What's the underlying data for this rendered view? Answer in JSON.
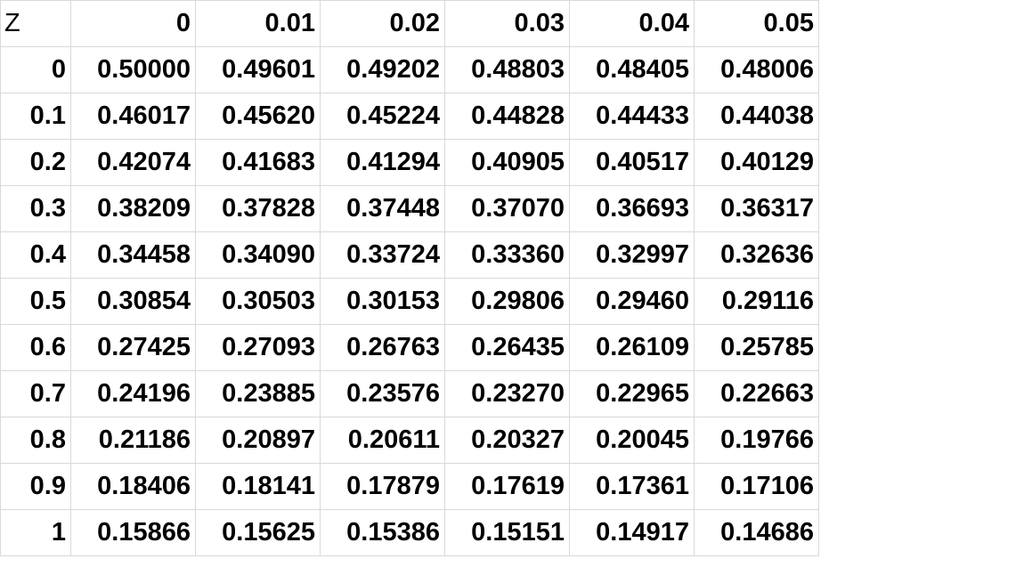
{
  "chart_data": {
    "type": "table",
    "corner_label": "Z",
    "columns": [
      "0",
      "0.01",
      "0.02",
      "0.03",
      "0.04",
      "0.05"
    ],
    "rows": [
      {
        "z": "0",
        "values": [
          "0.50000",
          "0.49601",
          "0.49202",
          "0.48803",
          "0.48405",
          "0.48006"
        ]
      },
      {
        "z": "0.1",
        "values": [
          "0.46017",
          "0.45620",
          "0.45224",
          "0.44828",
          "0.44433",
          "0.44038"
        ]
      },
      {
        "z": "0.2",
        "values": [
          "0.42074",
          "0.41683",
          "0.41294",
          "0.40905",
          "0.40517",
          "0.40129"
        ]
      },
      {
        "z": "0.3",
        "values": [
          "0.38209",
          "0.37828",
          "0.37448",
          "0.37070",
          "0.36693",
          "0.36317"
        ]
      },
      {
        "z": "0.4",
        "values": [
          "0.34458",
          "0.34090",
          "0.33724",
          "0.33360",
          "0.32997",
          "0.32636"
        ]
      },
      {
        "z": "0.5",
        "values": [
          "0.30854",
          "0.30503",
          "0.30153",
          "0.29806",
          "0.29460",
          "0.29116"
        ]
      },
      {
        "z": "0.6",
        "values": [
          "0.27425",
          "0.27093",
          "0.26763",
          "0.26435",
          "0.26109",
          "0.25785"
        ]
      },
      {
        "z": "0.7",
        "values": [
          "0.24196",
          "0.23885",
          "0.23576",
          "0.23270",
          "0.22965",
          "0.22663"
        ]
      },
      {
        "z": "0.8",
        "values": [
          "0.21186",
          "0.20897",
          "0.20611",
          "0.20327",
          "0.20045",
          "0.19766"
        ]
      },
      {
        "z": "0.9",
        "values": [
          "0.18406",
          "0.18141",
          "0.17879",
          "0.17619",
          "0.17361",
          "0.17106"
        ]
      },
      {
        "z": "1",
        "values": [
          "0.15866",
          "0.15625",
          "0.15386",
          "0.15151",
          "0.14917",
          "0.14686"
        ]
      }
    ]
  }
}
